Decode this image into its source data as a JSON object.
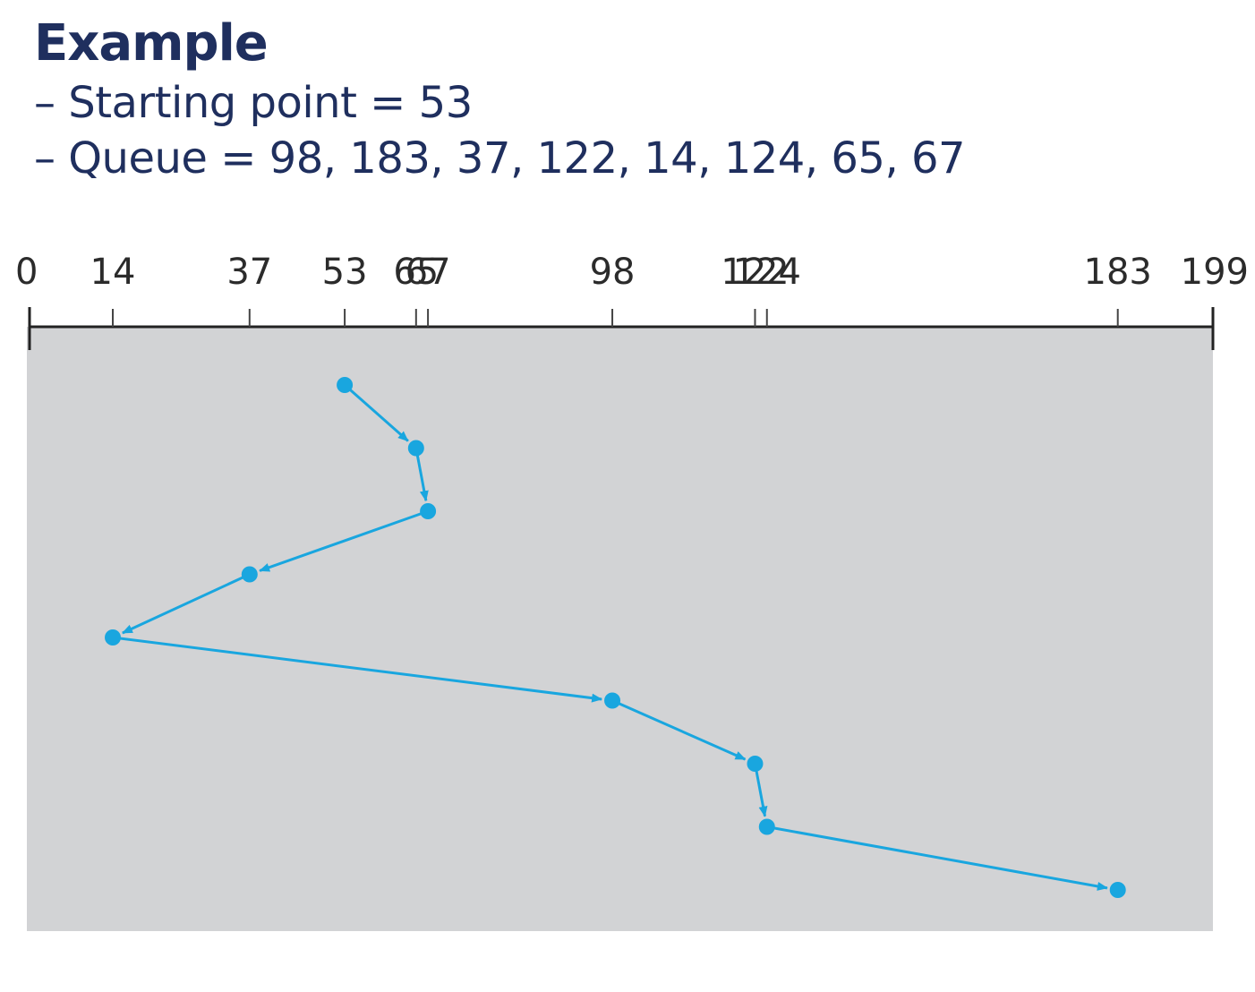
{
  "header": {
    "title": "Example",
    "starting_point_line": "– Starting point = 53",
    "queue_line": "– Queue = 98, 183, 37, 122, 14, 124, 65, 67"
  },
  "diagram": {
    "axis_min": 0,
    "axis_max": 199,
    "tick_labels": [
      "0",
      "14",
      "37",
      "53",
      "65",
      "67",
      "98",
      "122",
      "124",
      "183",
      "199"
    ],
    "tick_values": [
      0,
      14,
      37,
      53,
      65,
      67,
      98,
      122,
      124,
      183,
      199
    ],
    "service_order": [
      53,
      65,
      67,
      37,
      14,
      98,
      122,
      124,
      183
    ],
    "colors": {
      "background": "#d2d3d5",
      "path": "#19a6df",
      "axis": "#222222"
    }
  }
}
